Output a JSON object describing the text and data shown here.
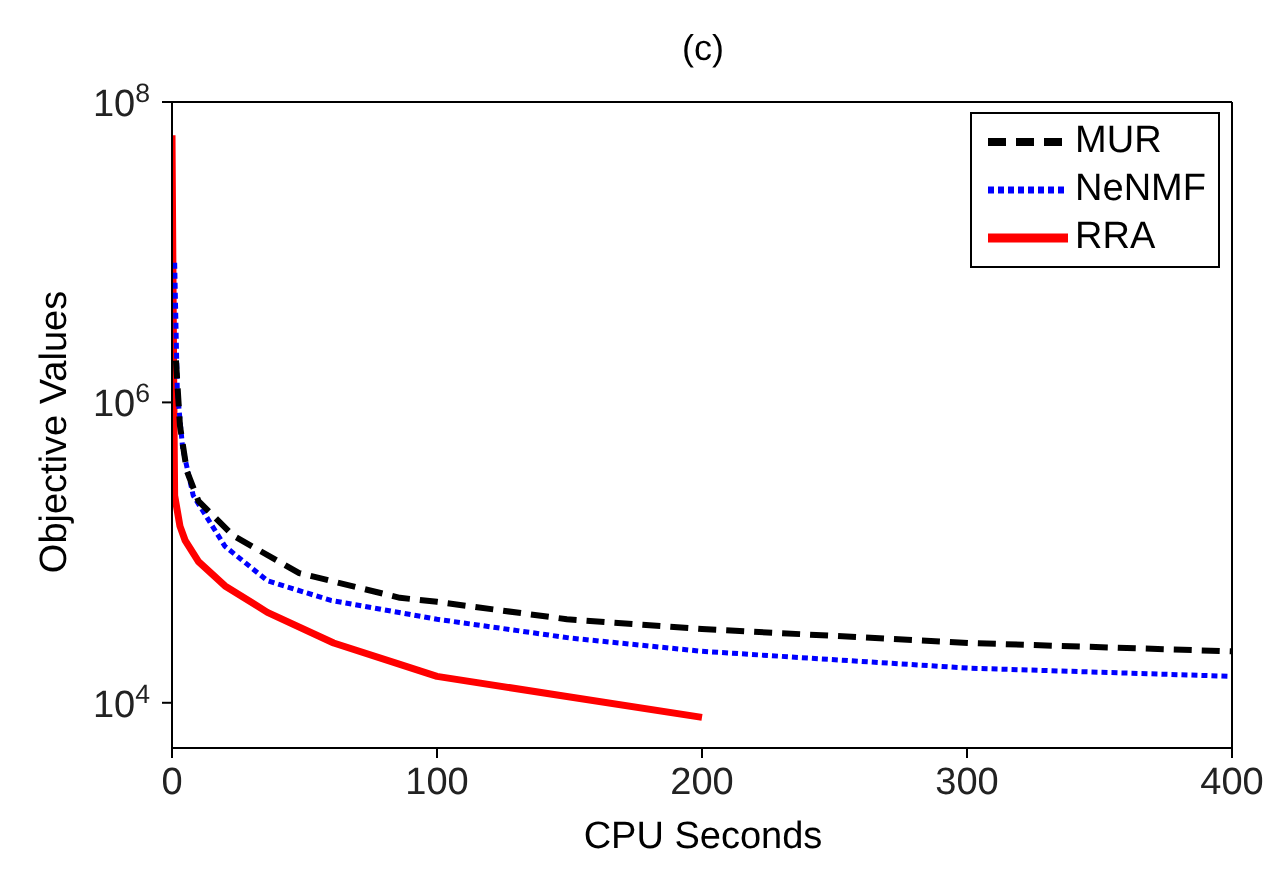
{
  "chart_data": {
    "type": "line",
    "title": "(c)",
    "xlabel": "CPU Seconds",
    "ylabel": "Objective Values",
    "log": "y",
    "xlim": [
      0,
      400
    ],
    "xticks": [
      0,
      100,
      200,
      300,
      400
    ],
    "ylim": [
      5000,
      100000000
    ],
    "yticks": [
      {
        "value": 10000,
        "label": "10$^{4}$"
      },
      {
        "value": 1000000,
        "label": "10$^{6}$"
      },
      {
        "value": 100000000,
        "label": "10$^{8}$"
      }
    ],
    "legend": "top right",
    "series": [
      {
        "name": "MUR",
        "color": "#000000",
        "line_style": "dashed",
        "x": [
          1.5,
          3,
          5.6,
          10,
          23,
          48,
          86,
          100,
          149,
          200,
          301,
          400
        ],
        "values": [
          1900000,
          700000,
          350000,
          220000,
          130000,
          73000,
          50000,
          47000,
          36000,
          31000,
          25000,
          22000
        ]
      },
      {
        "name": "NeNMF",
        "color": "#0000ff",
        "line_style": "dotted",
        "x": [
          1,
          2,
          4,
          8,
          20,
          36,
          60,
          100,
          150,
          200,
          301,
          400
        ],
        "values": [
          8500000,
          1200000,
          500000,
          240000,
          110000,
          65000,
          48000,
          36000,
          27000,
          22000,
          17000,
          15000
        ]
      },
      {
        "name": "RRA",
        "color": "#ff0000",
        "line_style": "solid",
        "x": [
          0,
          0.3,
          0.7,
          1,
          3,
          5,
          10,
          20,
          36,
          61,
          86,
          100,
          149,
          200
        ],
        "values": [
          60000000,
          10000000,
          1000000,
          240000,
          150000,
          120000,
          87000,
          60000,
          40000,
          25000,
          18000,
          15000,
          11000,
          8000
        ]
      }
    ]
  }
}
